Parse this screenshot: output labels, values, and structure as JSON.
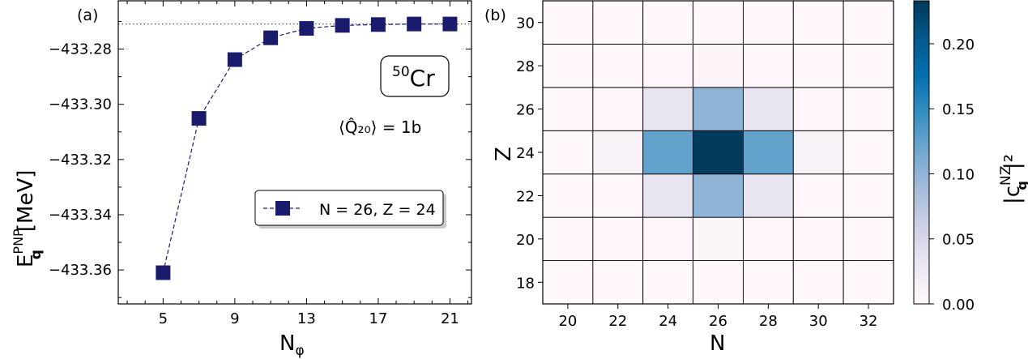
{
  "chart_data": [
    {
      "type": "line",
      "panel_label": "(a)",
      "ylabel": "E",
      "ylabel_sub": "q",
      "ylabel_sup": "PNP",
      "ylabel_unit": "[MeV]",
      "xlabel": "N",
      "xlabel_sub": "φ",
      "x_ticks": [
        "5",
        "9",
        "13",
        "17",
        "21"
      ],
      "y_ticks": [
        "−433.28",
        "−433.30",
        "−433.32",
        "−433.34",
        "−433.36"
      ],
      "xlim": [
        2.5,
        22.2
      ],
      "ylim": [
        -433.3723,
        -433.2625
      ],
      "reference_line_y": -433.2709,
      "series": [
        {
          "name": "N = 26, Z = 24",
          "color": "#1b1b6e",
          "marker": "square",
          "linestyle": "dashed",
          "x": [
            5,
            7,
            9,
            11,
            13,
            15,
            17,
            19,
            21
          ],
          "y": [
            -433.361,
            -433.3051,
            -433.2838,
            -433.2759,
            -433.2725,
            -433.2714,
            -433.2711,
            -433.2709,
            -433.2709
          ]
        }
      ],
      "legend_position": "center-right",
      "nucleus_mass": "50",
      "nucleus_symbol": "Cr",
      "quadrupole_text": "⟨Q̂₂₀⟩ = 1b"
    },
    {
      "type": "heatmap",
      "panel_label": "(b)",
      "xlabel": "N",
      "ylabel": "Z",
      "x_ticks": [
        "20",
        "22",
        "24",
        "26",
        "28",
        "30",
        "32"
      ],
      "y_ticks": [
        "18",
        "20",
        "22",
        "24",
        "26",
        "28",
        "30"
      ],
      "x_values": [
        20,
        22,
        24,
        26,
        28,
        30,
        32
      ],
      "y_values": [
        18,
        20,
        22,
        24,
        26,
        28,
        30
      ],
      "values": [
        [
          0.0,
          0.0,
          0.0,
          0.0,
          0.0,
          0.0,
          0.0
        ],
        [
          0.0,
          0.0,
          0.001,
          0.006,
          0.001,
          0.0,
          0.0
        ],
        [
          0.0,
          0.002,
          0.033,
          0.1,
          0.033,
          0.002,
          0.0
        ],
        [
          0.0,
          0.01,
          0.125,
          0.23,
          0.125,
          0.01,
          0.0
        ],
        [
          0.0,
          0.002,
          0.033,
          0.1,
          0.033,
          0.002,
          0.0
        ],
        [
          0.0,
          0.0,
          0.001,
          0.005,
          0.001,
          0.0,
          0.0
        ],
        [
          0.0,
          0.0,
          0.0,
          0.0,
          0.0,
          0.0,
          0.0
        ]
      ],
      "colorbar": {
        "label": "|c",
        "label_sub": "q",
        "label_sup": "NZ",
        "label_tail": "|²",
        "ticks": [
          "0.00",
          "0.05",
          "0.10",
          "0.15",
          "0.20"
        ],
        "tick_values": [
          0,
          0.05,
          0.1,
          0.15,
          0.2
        ],
        "range": [
          0,
          0.233
        ],
        "low_color": "#fff7fb",
        "high_color": "#023858"
      }
    }
  ]
}
